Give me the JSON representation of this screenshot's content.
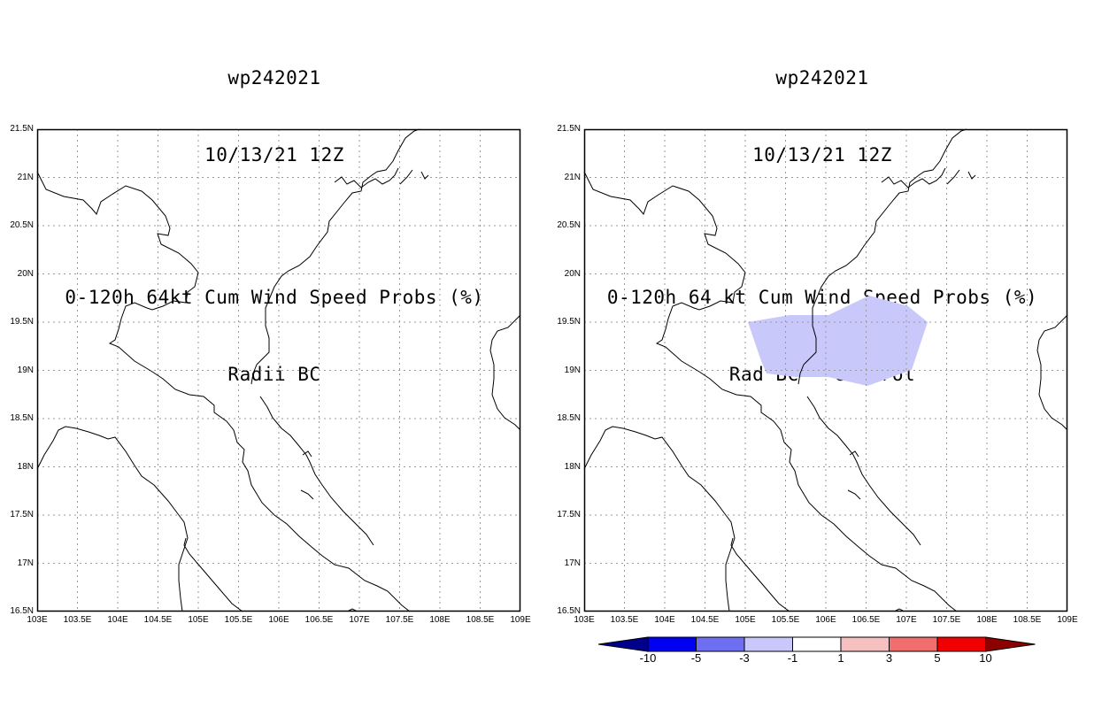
{
  "left_panel": {
    "title_line1": "wp242021",
    "title_line2": "10/13/21 12Z",
    "title_line3": "0-120h 64kt Cum Wind Speed Probs (%)",
    "title_line4": "Radii BC"
  },
  "right_panel": {
    "title_line1": "wp242021",
    "title_line2": "10/13/21 12Z",
    "title_line3": "0-120h 64 kt Cum Wind Speed Probs (%)",
    "title_line4": "Rad BC - Control",
    "shaded_region_category": "-3 to -1",
    "shaded_region_color": "#c8c8fa"
  },
  "axes": {
    "lat_labels": [
      "21.5N",
      "21N",
      "20.5N",
      "20N",
      "19.5N",
      "19N",
      "18.5N",
      "18N",
      "17.5N",
      "17N",
      "16.5N"
    ],
    "lon_labels": [
      "103E",
      "103.5E",
      "104E",
      "104.5E",
      "105E",
      "105.5E",
      "106E",
      "106.5E",
      "107E",
      "107.5E",
      "108E",
      "108.5E",
      "109E"
    ],
    "lat_range": [
      16.5,
      21.5
    ],
    "lon_range": [
      103,
      109
    ]
  },
  "colorbar": {
    "labels": [
      "-10",
      "-5",
      "-3",
      "-1",
      "1",
      "3",
      "5",
      "10"
    ],
    "colors": [
      "#00008c",
      "#0000f0",
      "#6e6ef0",
      "#c8c8fa",
      "#ffffff",
      "#f5c0c0",
      "#f06e6e",
      "#f00000",
      "#8c0000"
    ]
  }
}
